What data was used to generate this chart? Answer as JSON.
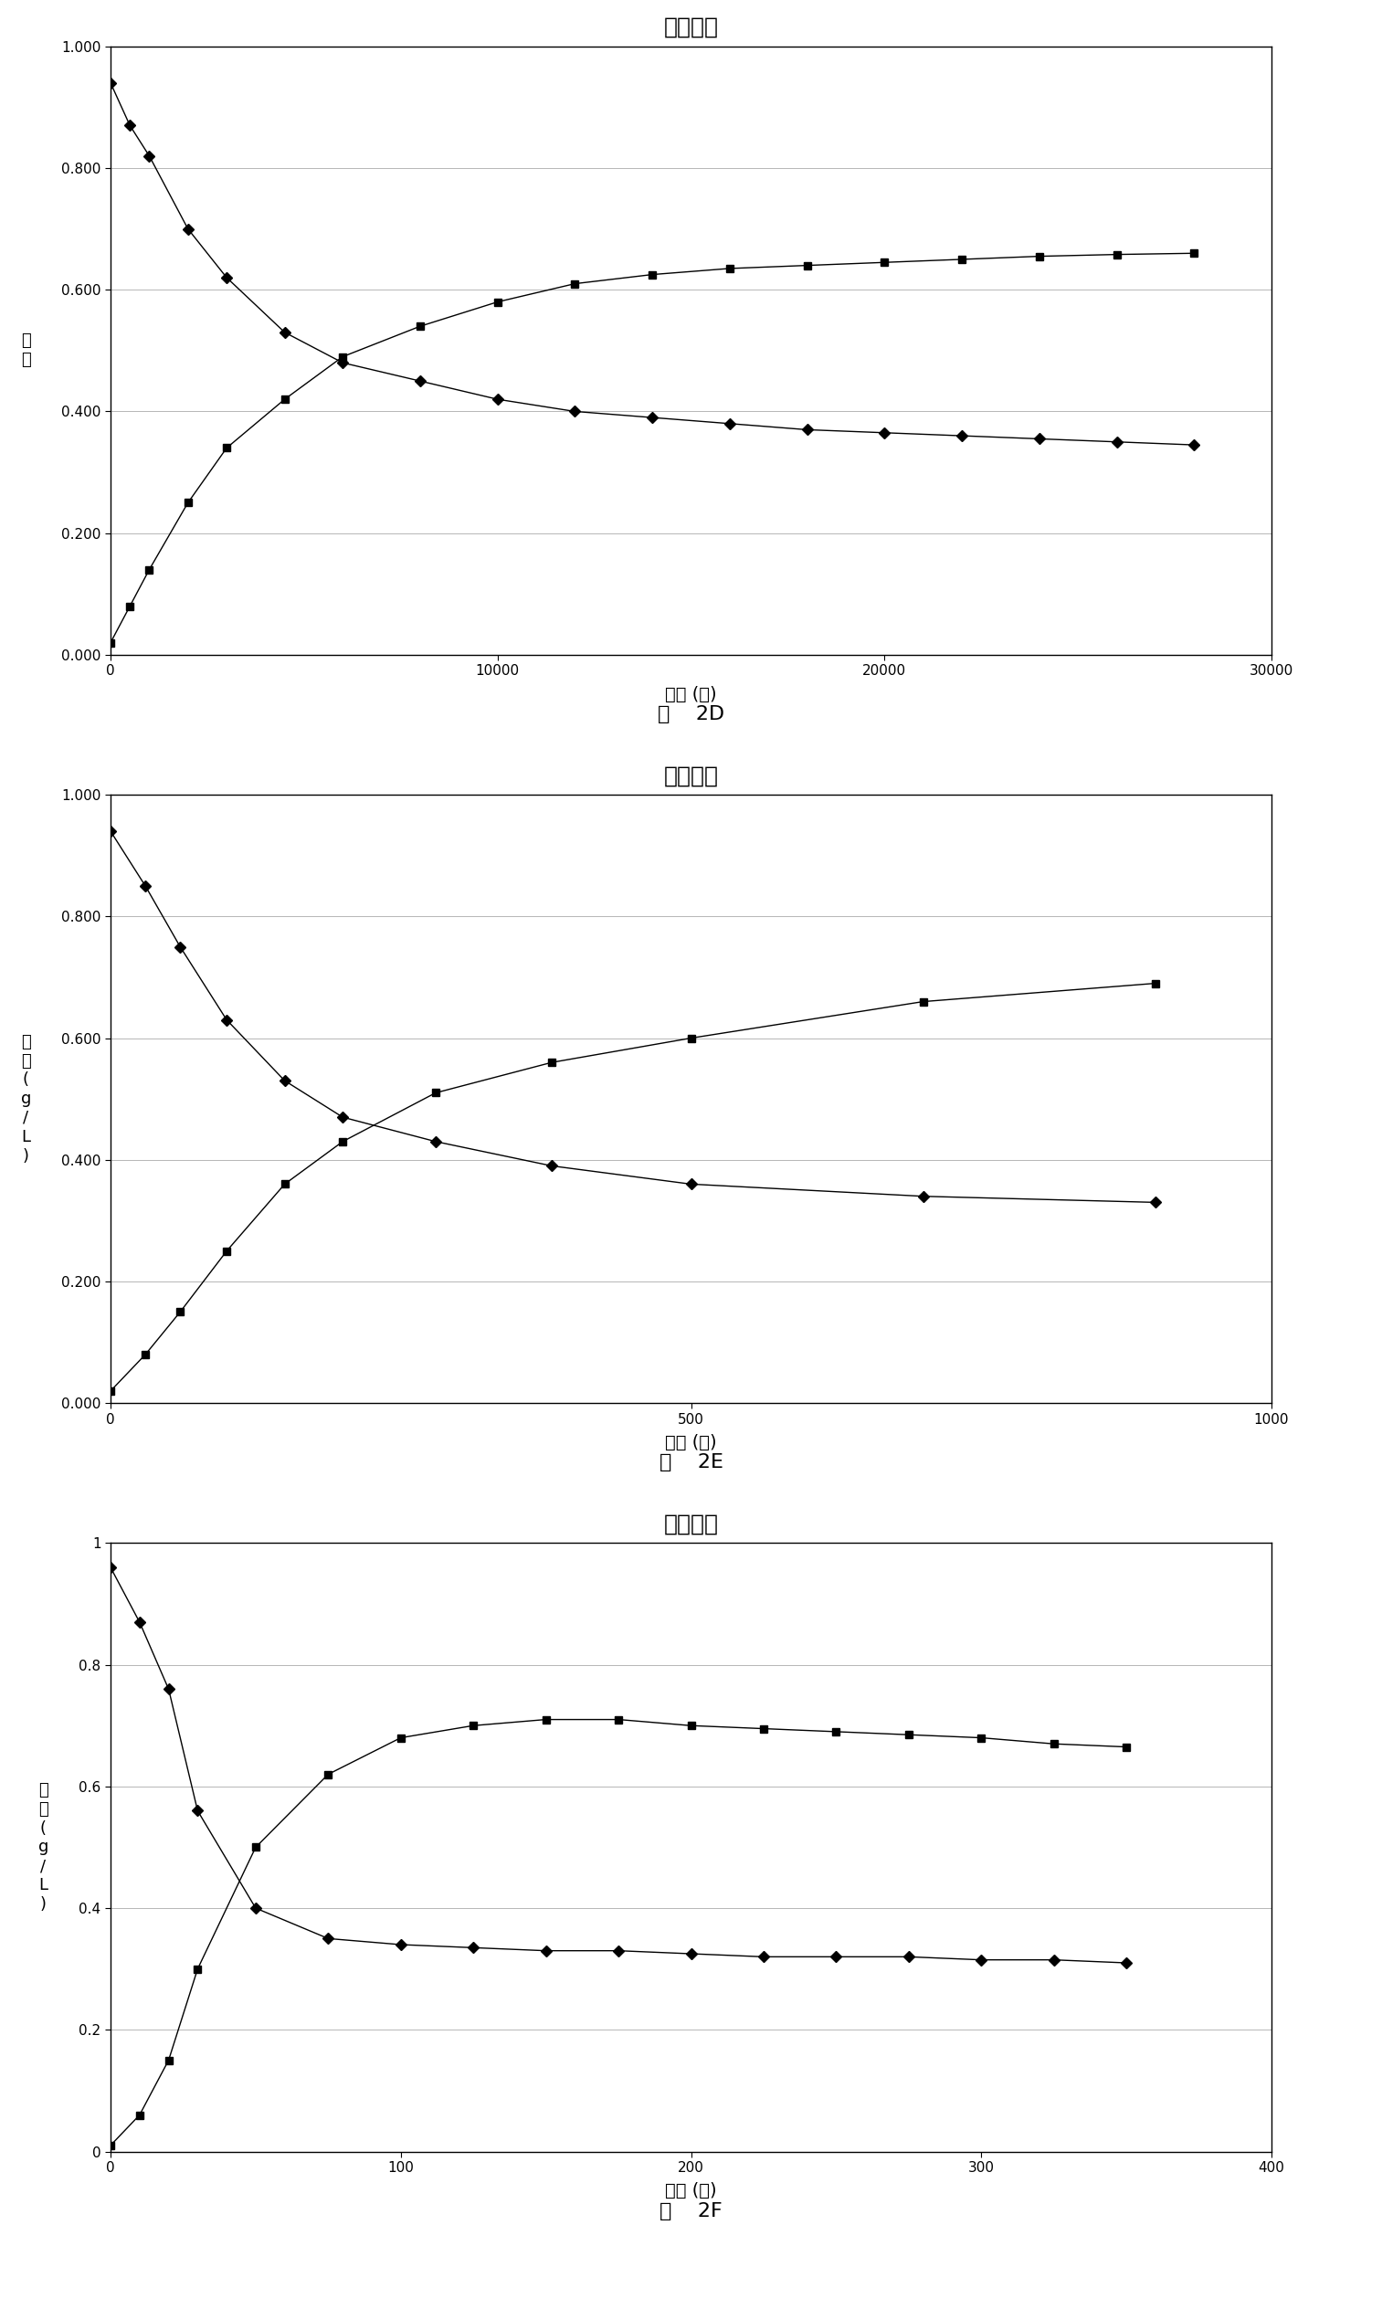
{
  "title": "浓度变化",
  "xlabel": "时间 (秒)",
  "ylabel_2D": "浓\n度",
  "ylabel_2EF": "浓\n度\n(\ng\n/\nL\n)",
  "fig_labels_left": [
    "图",
    "图",
    "图"
  ],
  "fig_labels_right": [
    "2D",
    "2E",
    "2F"
  ],
  "chart_2D": {
    "diamond_x": [
      0,
      500,
      1000,
      2000,
      3000,
      4500,
      6000,
      8000,
      10000,
      12000,
      14000,
      16000,
      18000,
      20000,
      22000,
      24000,
      26000,
      28000
    ],
    "diamond_y": [
      0.94,
      0.87,
      0.82,
      0.7,
      0.62,
      0.53,
      0.48,
      0.45,
      0.42,
      0.4,
      0.39,
      0.38,
      0.37,
      0.365,
      0.36,
      0.355,
      0.35,
      0.345
    ],
    "square_x": [
      0,
      500,
      1000,
      2000,
      3000,
      4500,
      6000,
      8000,
      10000,
      12000,
      14000,
      16000,
      18000,
      20000,
      22000,
      24000,
      26000,
      28000
    ],
    "square_y": [
      0.02,
      0.08,
      0.14,
      0.25,
      0.34,
      0.42,
      0.49,
      0.54,
      0.58,
      0.61,
      0.625,
      0.635,
      0.64,
      0.645,
      0.65,
      0.655,
      0.658,
      0.66
    ],
    "xlim": [
      0,
      30000
    ],
    "ylim": [
      0.0,
      1.0
    ],
    "xticks": [
      0,
      10000,
      20000,
      30000
    ],
    "ytick_vals": [
      0.0,
      0.2,
      0.4,
      0.6,
      0.8,
      1.0
    ],
    "ytick_labels": [
      "0.000",
      "0.200",
      "0.400",
      "0.600",
      "0.800",
      "1.000"
    ]
  },
  "chart_2E": {
    "diamond_x": [
      0,
      30,
      60,
      100,
      150,
      200,
      280,
      380,
      500,
      700,
      900
    ],
    "diamond_y": [
      0.94,
      0.85,
      0.75,
      0.63,
      0.53,
      0.47,
      0.43,
      0.39,
      0.36,
      0.34,
      0.33
    ],
    "square_x": [
      0,
      30,
      60,
      100,
      150,
      200,
      280,
      380,
      500,
      700,
      900
    ],
    "square_y": [
      0.02,
      0.08,
      0.15,
      0.25,
      0.36,
      0.43,
      0.51,
      0.56,
      0.6,
      0.66,
      0.69
    ],
    "xlim": [
      0,
      1000
    ],
    "ylim": [
      0.0,
      1.0
    ],
    "xticks": [
      0,
      500,
      1000
    ],
    "ytick_vals": [
      0.0,
      0.2,
      0.4,
      0.6,
      0.8,
      1.0
    ],
    "ytick_labels": [
      "0.000",
      "0.200",
      "0.400",
      "0.600",
      "0.800",
      "1.000"
    ]
  },
  "chart_2F": {
    "diamond_x": [
      0,
      10,
      20,
      30,
      50,
      75,
      100,
      125,
      150,
      175,
      200,
      225,
      250,
      275,
      300,
      325,
      350
    ],
    "diamond_y": [
      0.96,
      0.87,
      0.76,
      0.56,
      0.4,
      0.35,
      0.34,
      0.335,
      0.33,
      0.33,
      0.325,
      0.32,
      0.32,
      0.32,
      0.315,
      0.315,
      0.31
    ],
    "square_x": [
      0,
      10,
      20,
      30,
      50,
      75,
      100,
      125,
      150,
      175,
      200,
      225,
      250,
      275,
      300,
      325,
      350
    ],
    "square_y": [
      0.01,
      0.06,
      0.15,
      0.3,
      0.5,
      0.62,
      0.68,
      0.7,
      0.71,
      0.71,
      0.7,
      0.695,
      0.69,
      0.685,
      0.68,
      0.67,
      0.665
    ],
    "xlim": [
      0,
      400
    ],
    "ylim": [
      0.0,
      1.0
    ],
    "xticks": [
      0,
      100,
      200,
      300,
      400
    ],
    "ytick_vals": [
      0.0,
      0.2,
      0.4,
      0.6,
      0.8,
      1.0
    ],
    "ytick_labels": [
      "0",
      "0.2",
      "0.4",
      "0.6",
      "0.8",
      "1"
    ]
  },
  "line_color": "#000000",
  "marker_diamond": "D",
  "marker_square": "s",
  "marker_size": 6,
  "background_color": "#ffffff",
  "plot_bg": "#ffffff"
}
